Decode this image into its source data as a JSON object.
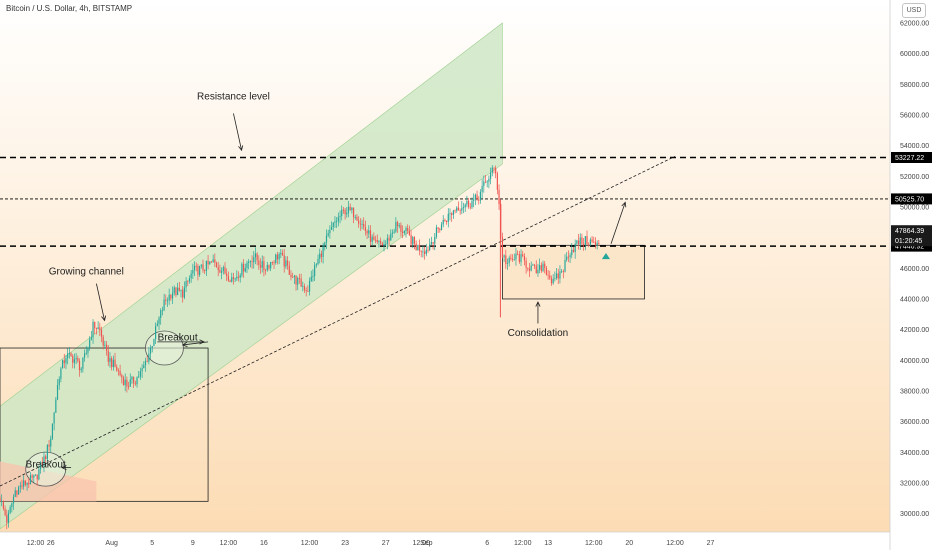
{
  "window": {
    "title": "Bitcoin / U.S. Dollar, 4h, BITSTAMP",
    "currency": "USD"
  },
  "colors": {
    "bull": "#26a69a",
    "bear": "#ef5350",
    "channel_fill": "#cfe8c6",
    "background_top": "#ffffff",
    "background_bottom": "#fcdcb4",
    "consolidation_fill": "#fbe3c6",
    "flag_fill": "#f9c3ad",
    "price_tag": "#000000"
  },
  "chart_data": {
    "type": "candlestick",
    "title": "Bitcoin / U.S. Dollar, 4h, BITSTAMP",
    "y_axis": {
      "min": 28800,
      "max": 63500,
      "ticks": [
        30000,
        32000,
        34000,
        36000,
        38000,
        40000,
        42000,
        44000,
        46000,
        48000,
        50000,
        52000,
        54000,
        56000,
        58000,
        60000,
        62000
      ],
      "tick_labels": [
        "30000.00",
        "32000.00",
        "34000.00",
        "36000.00",
        "38000.00",
        "40000.00",
        "42000.00",
        "44000.00",
        "46000.00",
        "48000.00",
        "50000.00",
        "52000.00",
        "54000.00",
        "56000.00",
        "58000.00",
        "60000.00",
        "62000.00"
      ]
    },
    "x_axis": {
      "labels": [
        "12:00",
        "26",
        "Aug",
        "5",
        "9",
        "12:00",
        "16",
        "12:00",
        "23",
        "27",
        "12:00",
        "Sep",
        "6",
        "12:00",
        "13",
        "12:00",
        "20",
        "12:00",
        "27"
      ],
      "label_day": [
        -7.5,
        -6,
        0,
        4,
        8,
        11.5,
        15,
        19.5,
        23,
        27,
        30.5,
        31,
        37,
        40.5,
        43,
        47.5,
        51,
        55.5,
        59
      ]
    },
    "price_path": [
      [
        -11.0,
        31000
      ],
      [
        -10.3,
        29500
      ],
      [
        -9.5,
        31500
      ],
      [
        -8.5,
        32000
      ],
      [
        -7.5,
        32300
      ],
      [
        -6.5,
        33800
      ],
      [
        -6.0,
        35000
      ],
      [
        -5.2,
        39000
      ],
      [
        -4.5,
        40300
      ],
      [
        -3.7,
        40100
      ],
      [
        -3.0,
        39500
      ],
      [
        -2.5,
        40500
      ],
      [
        -1.8,
        42300
      ],
      [
        -1.2,
        42000
      ],
      [
        -0.5,
        40300
      ],
      [
        0.5,
        39400
      ],
      [
        1.5,
        38400
      ],
      [
        2.3,
        38700
      ],
      [
        3.0,
        39300
      ],
      [
        3.8,
        40700
      ],
      [
        4.5,
        42300
      ],
      [
        5.2,
        43800
      ],
      [
        6.0,
        44500
      ],
      [
        7.0,
        44400
      ],
      [
        8.0,
        45800
      ],
      [
        9.0,
        46000
      ],
      [
        10.0,
        46400
      ],
      [
        11.0,
        45800
      ],
      [
        12.0,
        45300
      ],
      [
        13.0,
        46100
      ],
      [
        14.0,
        46800
      ],
      [
        15.0,
        46000
      ],
      [
        16.5,
        46900
      ],
      [
        18.0,
        45300
      ],
      [
        19.3,
        44600
      ],
      [
        20.0,
        46000
      ],
      [
        21.0,
        47600
      ],
      [
        22.0,
        49000
      ],
      [
        23.0,
        49800
      ],
      [
        24.0,
        49600
      ],
      [
        25.0,
        48500
      ],
      [
        26.0,
        47500
      ],
      [
        27.0,
        47600
      ],
      [
        28.0,
        48800
      ],
      [
        29.0,
        48300
      ],
      [
        30.0,
        47400
      ],
      [
        31.0,
        47200
      ],
      [
        32.5,
        48900
      ],
      [
        34.0,
        50000
      ],
      [
        35.0,
        50200
      ],
      [
        36.0,
        50500
      ],
      [
        37.0,
        51800
      ],
      [
        37.8,
        52600
      ],
      [
        38.2,
        50000
      ],
      [
        38.4,
        47000
      ],
      [
        39.0,
        46300
      ],
      [
        40.0,
        46800
      ],
      [
        41.0,
        46200
      ],
      [
        42.0,
        45700
      ],
      [
        42.5,
        46300
      ],
      [
        43.5,
        45000
      ],
      [
        44.5,
        46000
      ],
      [
        45.0,
        47000
      ],
      [
        46.0,
        47700
      ],
      [
        47.0,
        47800
      ],
      [
        48.0,
        47400
      ]
    ],
    "channel": {
      "lower_start": [
        -11.0,
        29000
      ],
      "lower_end": [
        38.5,
        52800
      ],
      "upper_start": [
        -11.0,
        37000
      ],
      "upper_end": [
        38.5,
        62000
      ]
    },
    "horizontal_levels": [
      {
        "price": 53227.22,
        "label": "53227.22",
        "style": "dashed-bold"
      },
      {
        "price": 50525.7,
        "label": "50525.70",
        "style": "dashed-thin"
      },
      {
        "price": 47446.92,
        "label": "47446.92",
        "style": "dashed-bold"
      }
    ],
    "current_price_label": "47864.39",
    "countdown_label": "01:20:45",
    "trendline": {
      "start": [
        -11.0,
        31800
      ],
      "end": [
        55.5,
        53300
      ]
    },
    "boxes": [
      {
        "name": "consolidation",
        "x": [
          38.5,
          52.5
        ],
        "y": [
          44000,
          47500
        ]
      },
      {
        "name": "breakout-base",
        "x": [
          -11.0,
          9.5
        ],
        "y": [
          30800,
          40800
        ]
      },
      {
        "name": "flag",
        "x": [
          -11.0,
          -1.5
        ],
        "y": [
          30800,
          33400
        ]
      }
    ],
    "annotations": [
      {
        "text": "Resistance level",
        "day": 12,
        "price": 57000
      },
      {
        "text": "Growing channel",
        "day": -2.5,
        "price": 45600
      },
      {
        "text": "Breakout",
        "day": 6.5,
        "price": 41300
      },
      {
        "text": "Breakout",
        "day": -6.5,
        "price": 33000
      },
      {
        "text": "Consolidation",
        "day": 42,
        "price": 41600
      }
    ]
  }
}
